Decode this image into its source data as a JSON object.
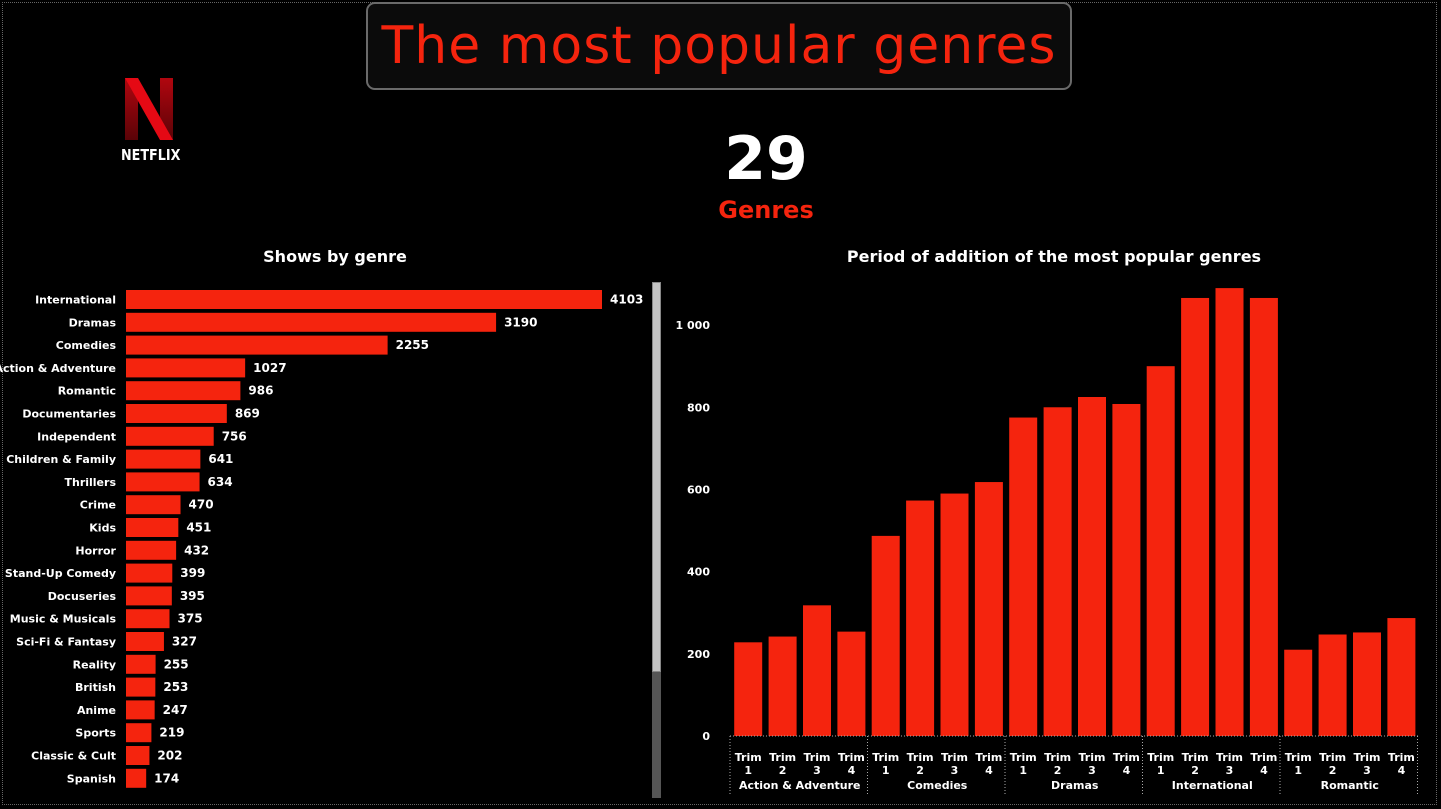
{
  "header": {
    "title": "The most popular genres",
    "logo_text": "NETFLIX",
    "kpi_value": "29",
    "kpi_label": "Genres"
  },
  "colors": {
    "accent": "#f5240e",
    "background": "#000000",
    "text": "#ffffff"
  },
  "chart_data": [
    {
      "type": "bar",
      "orientation": "horizontal",
      "title": "Shows by genre",
      "categories": [
        "International",
        "Dramas",
        "Comedies",
        "Action & Adventure",
        "Romantic",
        "Documentaries",
        "Independent",
        "Children & Family",
        "Thrillers",
        "Crime",
        "Kids",
        "Horror",
        "Stand-Up Comedy",
        "Docuseries",
        "Music & Musicals",
        "Sci-Fi & Fantasy",
        "Reality",
        "British",
        "Anime",
        "Sports",
        "Classic & Cult",
        "Spanish"
      ],
      "values": [
        4103,
        3190,
        2255,
        1027,
        986,
        869,
        756,
        641,
        634,
        470,
        451,
        432,
        399,
        395,
        375,
        327,
        255,
        253,
        247,
        219,
        202,
        174
      ],
      "data_labels": true,
      "grid": false
    },
    {
      "type": "bar",
      "title": "Period of addition of the most popular genres",
      "groups": [
        "Action & Adventure",
        "Comedies",
        "Dramas",
        "International",
        "Romantic"
      ],
      "categories": [
        "Trim 1",
        "Trim 2",
        "Trim 3",
        "Trim 4"
      ],
      "series": [
        {
          "group": "Action & Adventure",
          "values": [
            228,
            242,
            318,
            254
          ]
        },
        {
          "group": "Comedies",
          "values": [
            487,
            573,
            590,
            618
          ]
        },
        {
          "group": "Dramas",
          "values": [
            775,
            800,
            825,
            808
          ]
        },
        {
          "group": "International",
          "values": [
            900,
            1066,
            1090,
            1066
          ]
        },
        {
          "group": "Romantic",
          "values": [
            210,
            247,
            252,
            287
          ]
        }
      ],
      "yticks": [
        "0",
        "200",
        "400",
        "600",
        "800",
        "1 000"
      ],
      "ylim": [
        0,
        1100
      ],
      "grid": false
    }
  ]
}
